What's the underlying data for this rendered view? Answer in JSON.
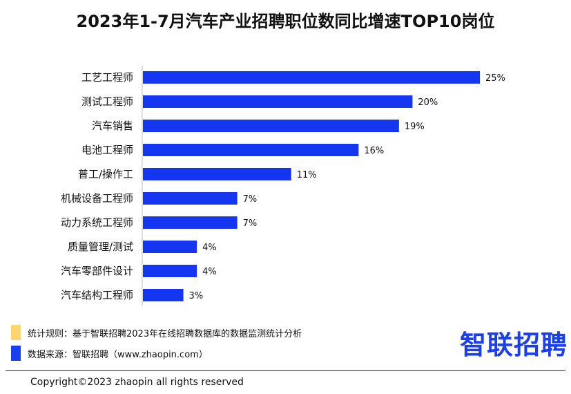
{
  "chart_data": {
    "type": "bar",
    "orientation": "horizontal",
    "title": "2023年1-7月汽车产业招聘职位数同比增速TOP10岗位",
    "categories": [
      "工艺工程师",
      "测试工程师",
      "汽车销售",
      "电池工程师",
      "普工/操作工",
      "机械设备工程师",
      "动力系统工程师",
      "质量管理/测试",
      "汽车零部件设计",
      "汽车结构工程师"
    ],
    "values": [
      25,
      20,
      19,
      16,
      11,
      7,
      7,
      4,
      4,
      3
    ],
    "value_labels": [
      "25%",
      "20%",
      "19%",
      "16%",
      "11%",
      "7%",
      "7%",
      "4%",
      "4%",
      "3%"
    ],
    "unit": "%",
    "bar_color": "#1436f0",
    "grid": false,
    "xlim": [
      0,
      25
    ]
  },
  "notes": [
    {
      "text": "统计规则：基于智联招聘2023年在线招聘数据库的数据监测统计分析",
      "color": "#ffd66b"
    },
    {
      "text": "数据来源：智联招聘（www.zhaopin.com）",
      "color": "#1a3ff0"
    }
  ],
  "logo": "智联招聘",
  "copyright": "Copyright©2023 zhaopin all rights reserved"
}
